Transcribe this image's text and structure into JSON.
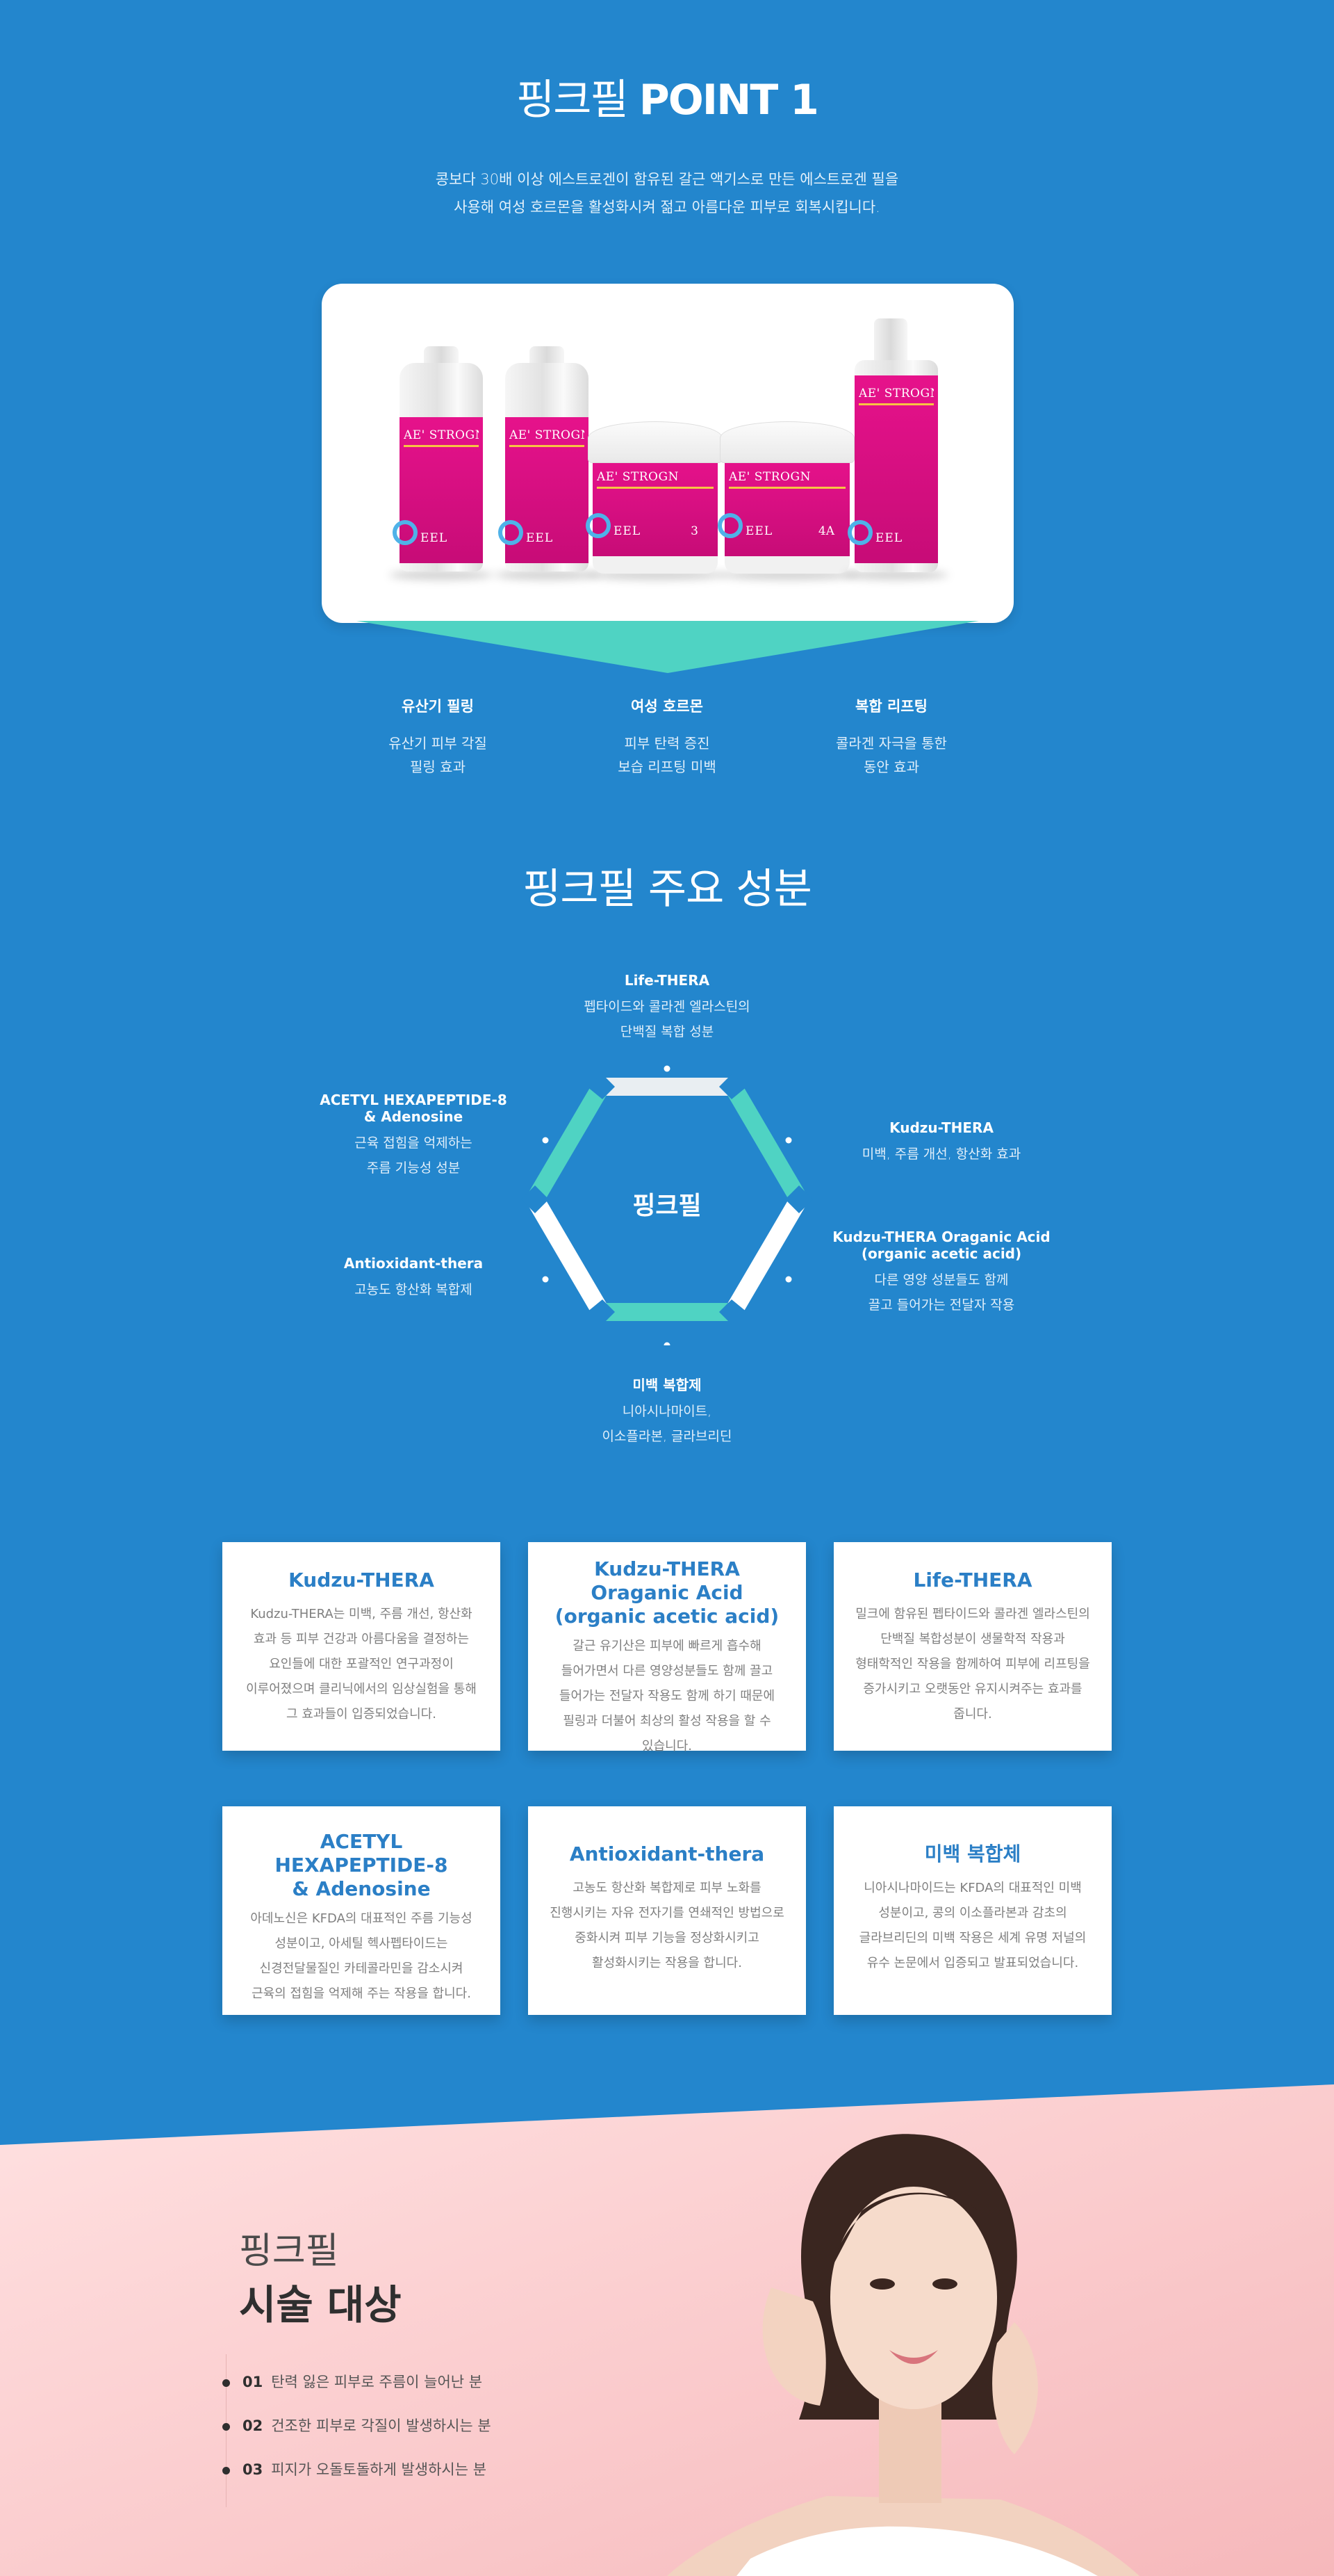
{
  "point": {
    "title_light": "핑크필",
    "title_bold": "POINT 1",
    "desc_line1": "콩보다 30배 이상 에스트로겐이 함유된 갈근 액기스로 만든 에스트로겐 필을",
    "desc_line2": "사용해 여성 호르몬을 활성화시켜 젊고 아름다운 피부로 회복시킵니다."
  },
  "products": {
    "brand": "AE' STROGN",
    "peel": "EEL",
    "numbers": [
      "",
      "",
      "3",
      "4A",
      ""
    ]
  },
  "features": [
    {
      "title": "유산기 필링",
      "line1": "유산기 피부 각질",
      "line2": "필링 효과"
    },
    {
      "title": "여성 호르몬",
      "line1": "피부 탄력 증진",
      "line2": "보습 리프팅 미백"
    },
    {
      "title": "복합 리프팅",
      "line1": "콜라겐 자극을 통한",
      "line2": "동안 효과"
    }
  ],
  "ingredients": {
    "title": "핑크필 주요 성분",
    "center": "핑크필",
    "top": {
      "title": "Life-THERA",
      "line1": "펩타이드와 콜라겐 엘라스틴의",
      "line2": "단백질 복합 성분"
    },
    "upper_left": {
      "title1": "ACETYL HEXAPEPTIDE-8",
      "title2": "& Adenosine",
      "line1": "근육 접힘을 억제하는",
      "line2": "주름 기능성 성분"
    },
    "upper_right": {
      "title": "Kudzu-THERA",
      "line1": "미백, 주름 개선, 항산화 효과"
    },
    "lower_left": {
      "title": "Antioxidant-thera",
      "line1": "고농도 항산화 복합제"
    },
    "lower_right": {
      "title1": "Kudzu-THERA Oraganic Acid",
      "title2": "(organic acetic acid)",
      "line1": "다른 영양 성분들도 함께",
      "line2": "끌고 들어가는 전달자 작용"
    },
    "bottom": {
      "title": "미백 복합제",
      "line1": "니아시나마이트,",
      "line2": "이소플라본, 글라브리딘"
    }
  },
  "cards": [
    {
      "title1": "Kudzu-THERA",
      "title2": "",
      "text": "Kudzu-THERA는 미백, 주름 개선, 항산화 효과 등 피부 건강과 아름다움을 결정하는 요인들에 대한 포괄적인 연구과정이 이루어졌으며 클리닉에서의 임상실험을 통해 그 효과들이 입증되었습니다."
    },
    {
      "title1": "Kudzu-THERA Oraganic Acid",
      "title2": "(organic acetic acid)",
      "text": "갈근 유기산은 피부에 빠르게 흡수해 들어가면서 다른 영양성분들도 함께 끌고 들어가는 전달자 작용도 함께 하기 때문에 필링과 더불어 최상의 활성 작용을 할 수 있습니다."
    },
    {
      "title1": "Life-THERA",
      "title2": "",
      "text": "밀크에 함유된 펩타이드와 콜라겐 엘라스틴의 단백질 복합성분이 생물학적 작용과 형태학적인 작용을 함께하여 피부에 리프팅을 증가시키고 오랫동안 유지시켜주는 효과를 줍니다."
    },
    {
      "title1": "ACETYL HEXAPEPTIDE-8",
      "title2": "& Adenosine",
      "text": "아데노신은 KFDA의 대표적인 주름 기능성 성분이고, 아세틸 헥사펩타이드는 신경전달물질인 카테콜라민을 감소시켜 근육의 접힘을 억제해 주는 작용을 합니다."
    },
    {
      "title1": "Antioxidant-thera",
      "title2": "",
      "text": "고농도 항산화 복합제로 피부 노화를 진행시키는 자유 전자기를 연쇄적인 방법으로 중화시켜 피부 기능을 정상화시키고 활성화시키는 작용을 합니다."
    },
    {
      "title1": "미백 복합체",
      "title2": "",
      "text": "니아시나마이드는 KFDA의 대표적인 미백 성분이고, 콩의 이소플라본과 감초의 글라브리딘의 미백 작용은 세계 유명 저널의 유수 논문에서 입증되고 발표되었습니다."
    }
  ],
  "target": {
    "sub": "핑크필",
    "title": "시술 대상",
    "items": [
      {
        "num": "01",
        "text": "탄력 잃은 피부로 주름이 늘어난 분"
      },
      {
        "num": "02",
        "text": "건조한 피부로 각질이 발생하시는 분"
      },
      {
        "num": "03",
        "text": "피지가 오돌토돌하게 발생하시는 분"
      }
    ]
  },
  "colors": {
    "background": "#2386cd",
    "accent_mint": "#4fd3c3",
    "product_pink": "#e6128b",
    "card_title": "#2b7fc6",
    "pink_zone_start": "#ffdede",
    "pink_zone_end": "#f8bcbf"
  }
}
